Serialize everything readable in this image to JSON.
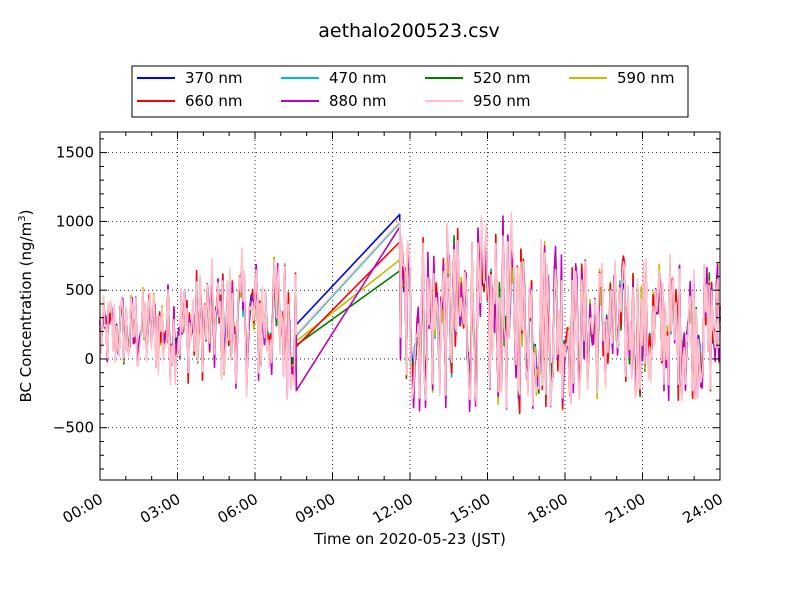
{
  "chart_data": {
    "type": "line",
    "title": "aethalo200523.csv",
    "xlabel": "Time on 2020-05-23 (JST)",
    "ylabel": "BC Concentration (ng/m",
    "ylabel_sup": "3",
    "ylabel_tail": ")",
    "xlim": [
      0,
      24
    ],
    "ylim": [
      -880,
      1650
    ],
    "x_ticks": [
      0,
      3,
      6,
      9,
      12,
      15,
      18,
      21,
      24
    ],
    "x_tick_labels": [
      "00:00",
      "03:00",
      "06:00",
      "09:00",
      "12:00",
      "15:00",
      "18:00",
      "21:00",
      "24:00"
    ],
    "y_ticks": [
      -500,
      0,
      500,
      1000,
      1500
    ],
    "y_tick_labels": [
      "−500",
      "0",
      "500",
      "1000",
      "1500"
    ],
    "grid": true,
    "legend_position": "top-center",
    "legend_columns": 4,
    "gap": [
      7.6,
      11.6
    ],
    "series": [
      {
        "name": "370 nm",
        "color": "#0000ff",
        "gap_start": 250,
        "gap_end": 1050
      },
      {
        "name": "470 nm",
        "color": "#00bfbf",
        "gap_start": 170,
        "gap_end": 990
      },
      {
        "name": "520 nm",
        "color": "#008000",
        "gap_start": 100,
        "gap_end": 640
      },
      {
        "name": "590 nm",
        "color": "#bfbf00",
        "gap_start": 130,
        "gap_end": 720
      },
      {
        "name": "660 nm",
        "color": "#ff0000",
        "gap_start": 90,
        "gap_end": 850
      },
      {
        "name": "880 nm",
        "color": "#bf00bf",
        "gap_start": -230,
        "gap_end": 960
      },
      {
        "name": "950 nm",
        "color": "#ffc0cb",
        "gap_start": 180,
        "gap_end": 1000
      }
    ]
  }
}
